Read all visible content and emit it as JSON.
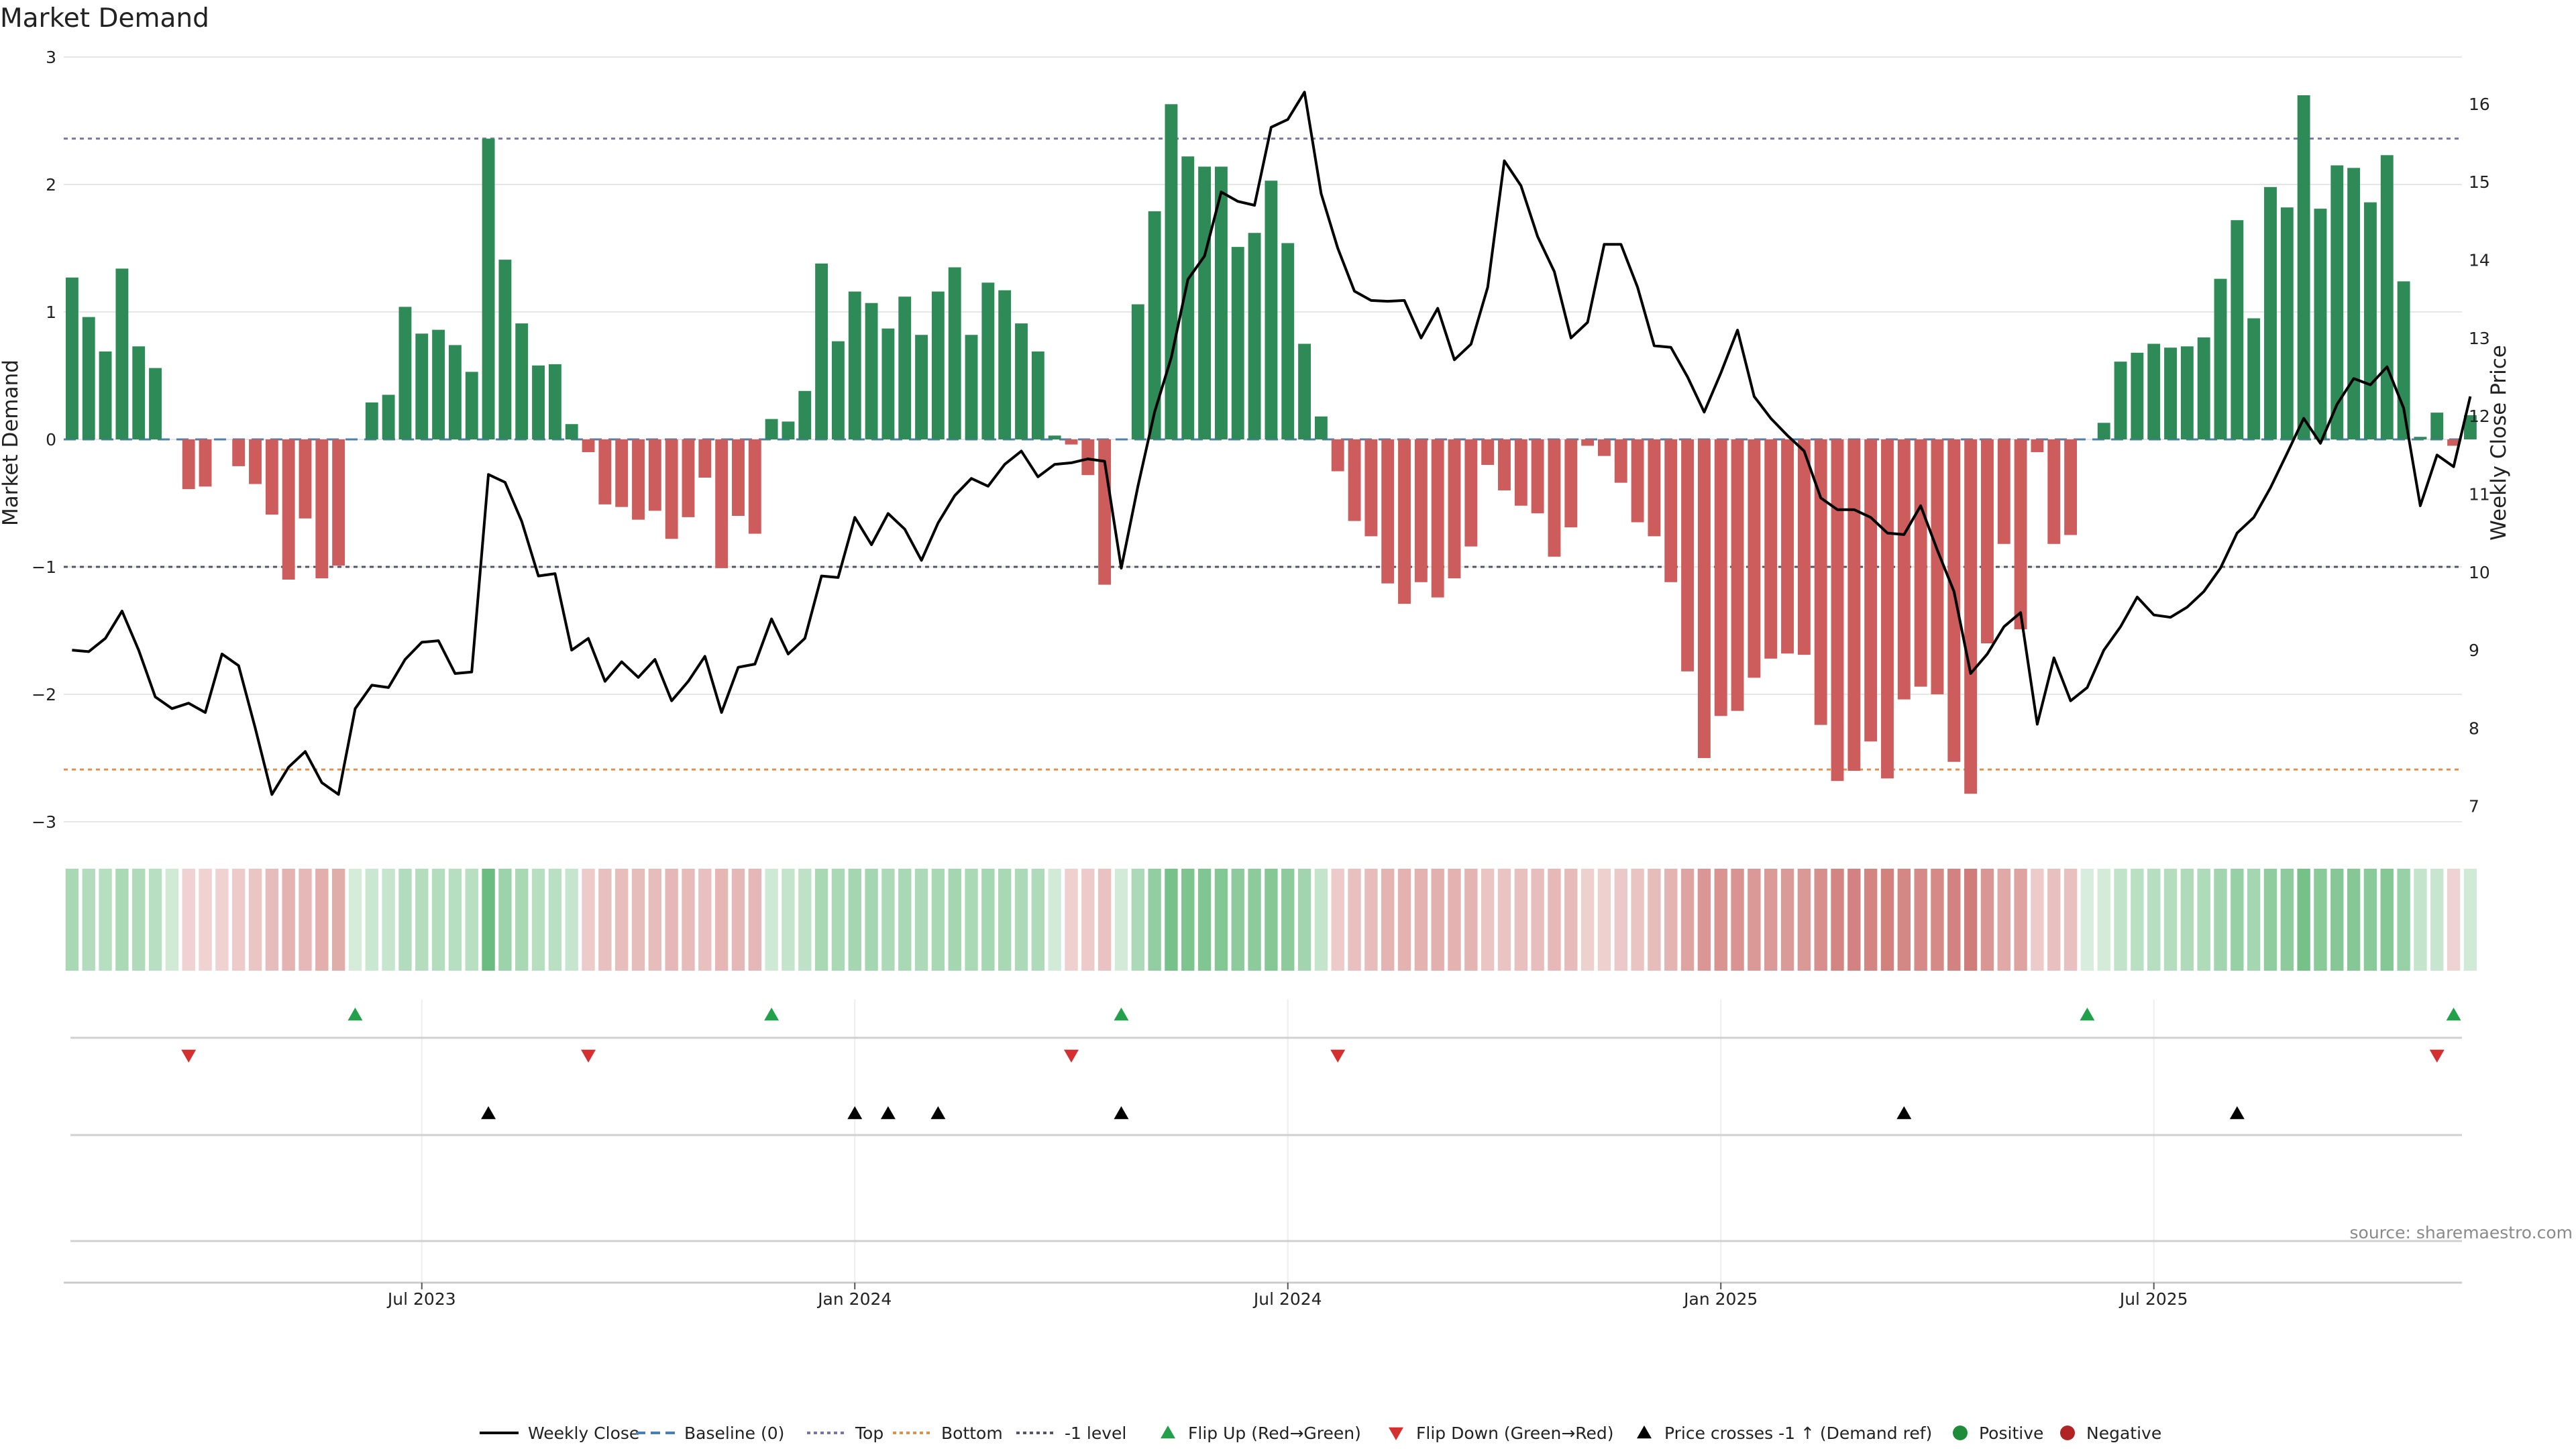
{
  "chart_data": {
    "type": "bar",
    "title": "Market Demand",
    "ylabel": "Market Demand",
    "y2label": "Weekly Close Price",
    "ylim": [
      -3,
      3
    ],
    "y2lim": [
      6.8,
      16.6
    ],
    "yticks": [
      3,
      2,
      1,
      0,
      -1,
      -2,
      -3
    ],
    "yticklabels": [
      "3",
      "2",
      "1",
      "0",
      "−1",
      "−2",
      "−3"
    ],
    "y2ticks": [
      16,
      15,
      14,
      13,
      12,
      11,
      10,
      9,
      8,
      7
    ],
    "y2ticklabels": [
      "16",
      "15",
      "14",
      "13",
      "12",
      "11",
      "10",
      "9",
      "8",
      "7"
    ],
    "xticks": [
      21.5,
      47.5,
      73.5,
      99.5,
      125.5
    ],
    "xticklabels": [
      "Jul 2023",
      "Jan 2024",
      "Jul 2024",
      "Jan 2025",
      "Jul 2025"
    ],
    "n_weeks": 144,
    "reference_lines": {
      "top": 2.36,
      "bottom": -2.59,
      "minus_one": -1.0
    },
    "series": [
      {
        "name": "Market Demand",
        "values": [
          1.27,
          0.96,
          0.69,
          1.34,
          0.73,
          0.56,
          0.0,
          -0.39,
          -0.37,
          0.0,
          -0.21,
          -0.35,
          -0.59,
          -1.1,
          -0.62,
          -1.09,
          -0.99,
          0.0,
          0.29,
          0.35,
          1.04,
          0.83,
          0.86,
          0.74,
          0.53,
          2.36,
          1.41,
          0.91,
          0.58,
          0.59,
          0.12,
          -0.1,
          -0.51,
          -0.53,
          -0.63,
          -0.56,
          -0.78,
          -0.61,
          -0.3,
          -1.01,
          -0.6,
          -0.74,
          0.16,
          0.14,
          0.38,
          1.38,
          0.77,
          1.16,
          1.07,
          0.87,
          1.12,
          0.82,
          1.16,
          1.35,
          0.82,
          1.23,
          1.17,
          0.91,
          0.69,
          0.03,
          -0.04,
          -0.28,
          -1.14,
          0.0,
          1.06,
          1.79,
          2.63,
          2.22,
          2.14,
          2.14,
          1.51,
          1.62,
          2.03,
          1.54,
          0.75,
          0.18,
          -0.25,
          -0.64,
          -0.76,
          -1.13,
          -1.29,
          -1.12,
          -1.24,
          -1.09,
          -0.84,
          -0.2,
          -0.4,
          -0.52,
          -0.58,
          -0.92,
          -0.69,
          -0.05,
          -0.13,
          -0.34,
          -0.65,
          -0.76,
          -1.12,
          -1.82,
          -2.5,
          -2.17,
          -2.13,
          -1.87,
          -1.72,
          -1.68,
          -1.69,
          -2.24,
          -2.68,
          -2.6,
          -2.37,
          -2.66,
          -2.04,
          -1.94,
          -2.0,
          -2.53,
          -2.78,
          -1.6,
          -0.82,
          -1.49,
          -0.1,
          -0.82,
          -0.75,
          0.0,
          0.13,
          0.61,
          0.68,
          0.75,
          0.72,
          0.73,
          0.8,
          1.26,
          1.72,
          0.95,
          1.98,
          1.82,
          2.7,
          1.81,
          2.15,
          2.13,
          1.86,
          2.23,
          1.24,
          0.02,
          0.21,
          -0.05,
          0.19
        ]
      },
      {
        "name": "Weekly Close",
        "values": [
          9.0,
          8.98,
          9.15,
          9.5,
          9.0,
          8.4,
          8.25,
          8.32,
          8.2,
          8.95,
          8.8,
          8.0,
          7.15,
          7.5,
          7.7,
          7.3,
          7.15,
          8.25,
          8.55,
          8.52,
          8.88,
          9.1,
          9.12,
          8.7,
          8.72,
          11.25,
          11.15,
          10.65,
          9.95,
          9.98,
          9.0,
          9.15,
          8.6,
          8.85,
          8.65,
          8.88,
          8.35,
          8.6,
          8.92,
          8.2,
          8.78,
          8.82,
          9.4,
          8.95,
          9.15,
          9.95,
          9.93,
          10.7,
          10.35,
          10.75,
          10.55,
          10.15,
          10.63,
          10.98,
          11.2,
          11.1,
          11.38,
          11.55,
          11.22,
          11.38,
          11.4,
          11.45,
          11.42,
          10.05,
          11.1,
          12.05,
          12.75,
          13.75,
          14.05,
          14.87,
          14.75,
          14.7,
          15.7,
          15.8,
          16.15,
          14.85,
          14.15,
          13.6,
          13.48,
          13.47,
          13.48,
          13.0,
          13.38,
          12.72,
          12.92,
          13.65,
          15.27,
          14.95,
          14.3,
          13.85,
          13.0,
          13.2,
          14.2,
          14.2,
          13.65,
          12.9,
          12.88,
          12.5,
          12.05,
          12.55,
          13.1,
          12.25,
          11.97,
          11.75,
          11.55,
          10.95,
          10.8,
          10.8,
          10.7,
          10.5,
          10.48,
          10.85,
          10.28,
          9.75,
          8.7,
          8.95,
          9.3,
          9.48,
          8.05,
          8.9,
          8.35,
          8.52,
          9.0,
          9.3,
          9.68,
          9.45,
          9.42,
          9.55,
          9.75,
          10.05,
          10.5,
          10.7,
          11.08,
          11.52,
          11.97,
          11.65,
          12.15,
          12.48,
          12.4,
          12.63,
          12.1,
          10.85,
          11.5,
          11.35,
          12.25
        ]
      }
    ],
    "state_strip": {
      "name": "Demand intensity",
      "values": [
        0.44,
        0.39,
        0.37,
        0.43,
        0.4,
        0.36,
        0.24,
        -0.26,
        -0.26,
        -0.26,
        -0.3,
        -0.33,
        -0.38,
        -0.44,
        -0.4,
        -0.46,
        -0.47,
        0.21,
        0.27,
        0.29,
        0.39,
        0.38,
        0.38,
        0.37,
        0.36,
        0.75,
        0.5,
        0.44,
        0.37,
        0.35,
        0.29,
        -0.3,
        -0.36,
        -0.37,
        -0.38,
        -0.38,
        -0.41,
        -0.39,
        -0.36,
        -0.42,
        -0.41,
        -0.41,
        0.25,
        0.3,
        0.33,
        0.44,
        0.43,
        0.46,
        0.46,
        0.42,
        0.44,
        0.42,
        0.44,
        0.46,
        0.43,
        0.45,
        0.44,
        0.42,
        0.4,
        0.23,
        -0.27,
        -0.3,
        -0.35,
        0.23,
        0.42,
        0.55,
        0.69,
        0.66,
        0.64,
        0.63,
        0.58,
        0.58,
        0.62,
        0.58,
        0.47,
        0.3,
        -0.3,
        -0.36,
        -0.38,
        -0.43,
        -0.44,
        -0.44,
        -0.45,
        -0.44,
        -0.43,
        -0.33,
        -0.34,
        -0.36,
        -0.37,
        -0.4,
        -0.39,
        -0.27,
        -0.27,
        -0.31,
        -0.34,
        -0.38,
        -0.43,
        -0.52,
        -0.6,
        -0.61,
        -0.61,
        -0.59,
        -0.58,
        -0.58,
        -0.59,
        -0.64,
        -0.7,
        -0.71,
        -0.7,
        -0.72,
        -0.68,
        -0.67,
        -0.67,
        -0.71,
        -0.75,
        -0.6,
        -0.5,
        -0.53,
        -0.3,
        -0.36,
        -0.36,
        0.2,
        0.22,
        0.32,
        0.35,
        0.37,
        0.38,
        0.4,
        0.41,
        0.47,
        0.53,
        0.46,
        0.57,
        0.58,
        0.7,
        0.6,
        0.62,
        0.62,
        0.6,
        0.62,
        0.52,
        0.3,
        0.28,
        -0.25,
        0.24
      ]
    },
    "events": {
      "flip_up": [
        17,
        42,
        63,
        121,
        143
      ],
      "flip_down": [
        7,
        31,
        60,
        76,
        142
      ],
      "price_cross": [
        25,
        47,
        49,
        52,
        63,
        110,
        130
      ]
    },
    "legend": [
      {
        "label": "Weekly Close",
        "kind": "line",
        "color": "#000000"
      },
      {
        "label": "Baseline (0)",
        "kind": "dashed",
        "color": "#4a7fb5"
      },
      {
        "label": "Top",
        "kind": "dotted",
        "color": "#7a75a8"
      },
      {
        "label": "Bottom",
        "kind": "dotted",
        "color": "#e0904a"
      },
      {
        "label": "-1 level",
        "kind": "dotted",
        "color": "#555566"
      },
      {
        "label": "Flip Up (Red→Green)",
        "kind": "triangle-up",
        "color": "#22a04a"
      },
      {
        "label": "Flip Down (Green→Red)",
        "kind": "triangle-down",
        "color": "#d62f2f"
      },
      {
        "label": "Price crosses -1 ↑ (Demand ref)",
        "kind": "triangle-up",
        "color": "#000000"
      },
      {
        "label": "Positive",
        "kind": "dot",
        "color": "#1e8c38"
      },
      {
        "label": "Negative",
        "kind": "dot",
        "color": "#b02424"
      }
    ],
    "source": "source: sharemaestro.com",
    "colors": {
      "positive_bar": "#2e8b57",
      "negative_bar": "#cd5c5c",
      "strip_positive": "#3aa655",
      "strip_negative": "#c0504d",
      "grid": "#e6e6e6",
      "price_line": "#000000"
    }
  }
}
